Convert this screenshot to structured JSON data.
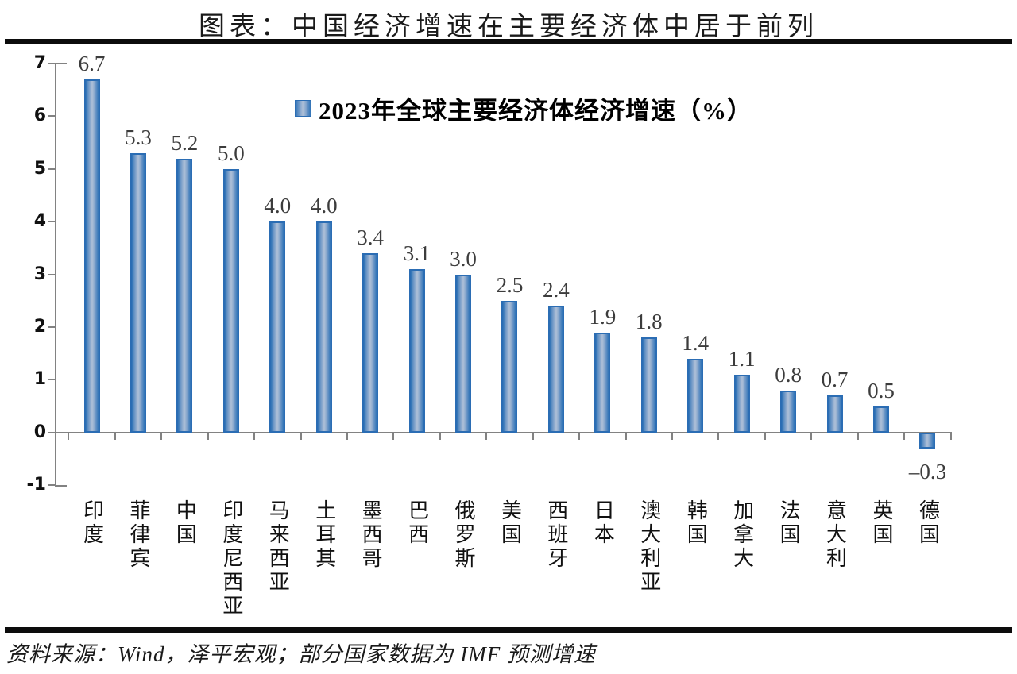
{
  "page": {
    "source_note": "资料来源：Wind，泽平宏观；部分国家数据为 IMF 预测增速"
  },
  "chart_data": {
    "type": "bar",
    "title": "图表：中国经济增速在主要经济体中居于前列",
    "legend": "2023年全球主要经济体经济增速（%）",
    "legend_position": "top-center",
    "categories": [
      "印度",
      "菲律宾",
      "中国",
      "印度尼西亚",
      "马来西亚",
      "土耳其",
      "墨西哥",
      "巴西",
      "俄罗斯",
      "美国",
      "西班牙",
      "日本",
      "澳大利亚",
      "韩国",
      "加拿大",
      "法国",
      "意大利",
      "英国",
      "德国"
    ],
    "values": [
      6.7,
      5.3,
      5.2,
      5.0,
      4.0,
      4.0,
      3.4,
      3.1,
      3.0,
      2.5,
      2.4,
      1.9,
      1.8,
      1.4,
      1.1,
      0.8,
      0.7,
      0.5,
      -0.3
    ],
    "value_labels": [
      "6.7",
      "5.3",
      "5.2",
      "5.0",
      "4.0",
      "4.0",
      "3.4",
      "3.1",
      "3.0",
      "2.5",
      "2.4",
      "1.9",
      "1.8",
      "1.4",
      "1.1",
      "0.8",
      "0.7",
      "0.5",
      "–0.3"
    ],
    "xlabel": "",
    "ylabel": "",
    "ylim": [
      -1,
      7
    ],
    "y_ticks": [
      7,
      6,
      5,
      4,
      3,
      2,
      1,
      0,
      -1
    ],
    "y_tick_labels": [
      "7",
      "6",
      "5",
      "4",
      "3",
      "2",
      "1",
      "0",
      "-1"
    ],
    "grid": false,
    "colors": {
      "bar_edge": "#2E72B6",
      "bar_mid": "#A9BCD6",
      "bar_border": "#2B6DB4",
      "axis": "#828282",
      "value_label": "#3C3C3C"
    }
  }
}
